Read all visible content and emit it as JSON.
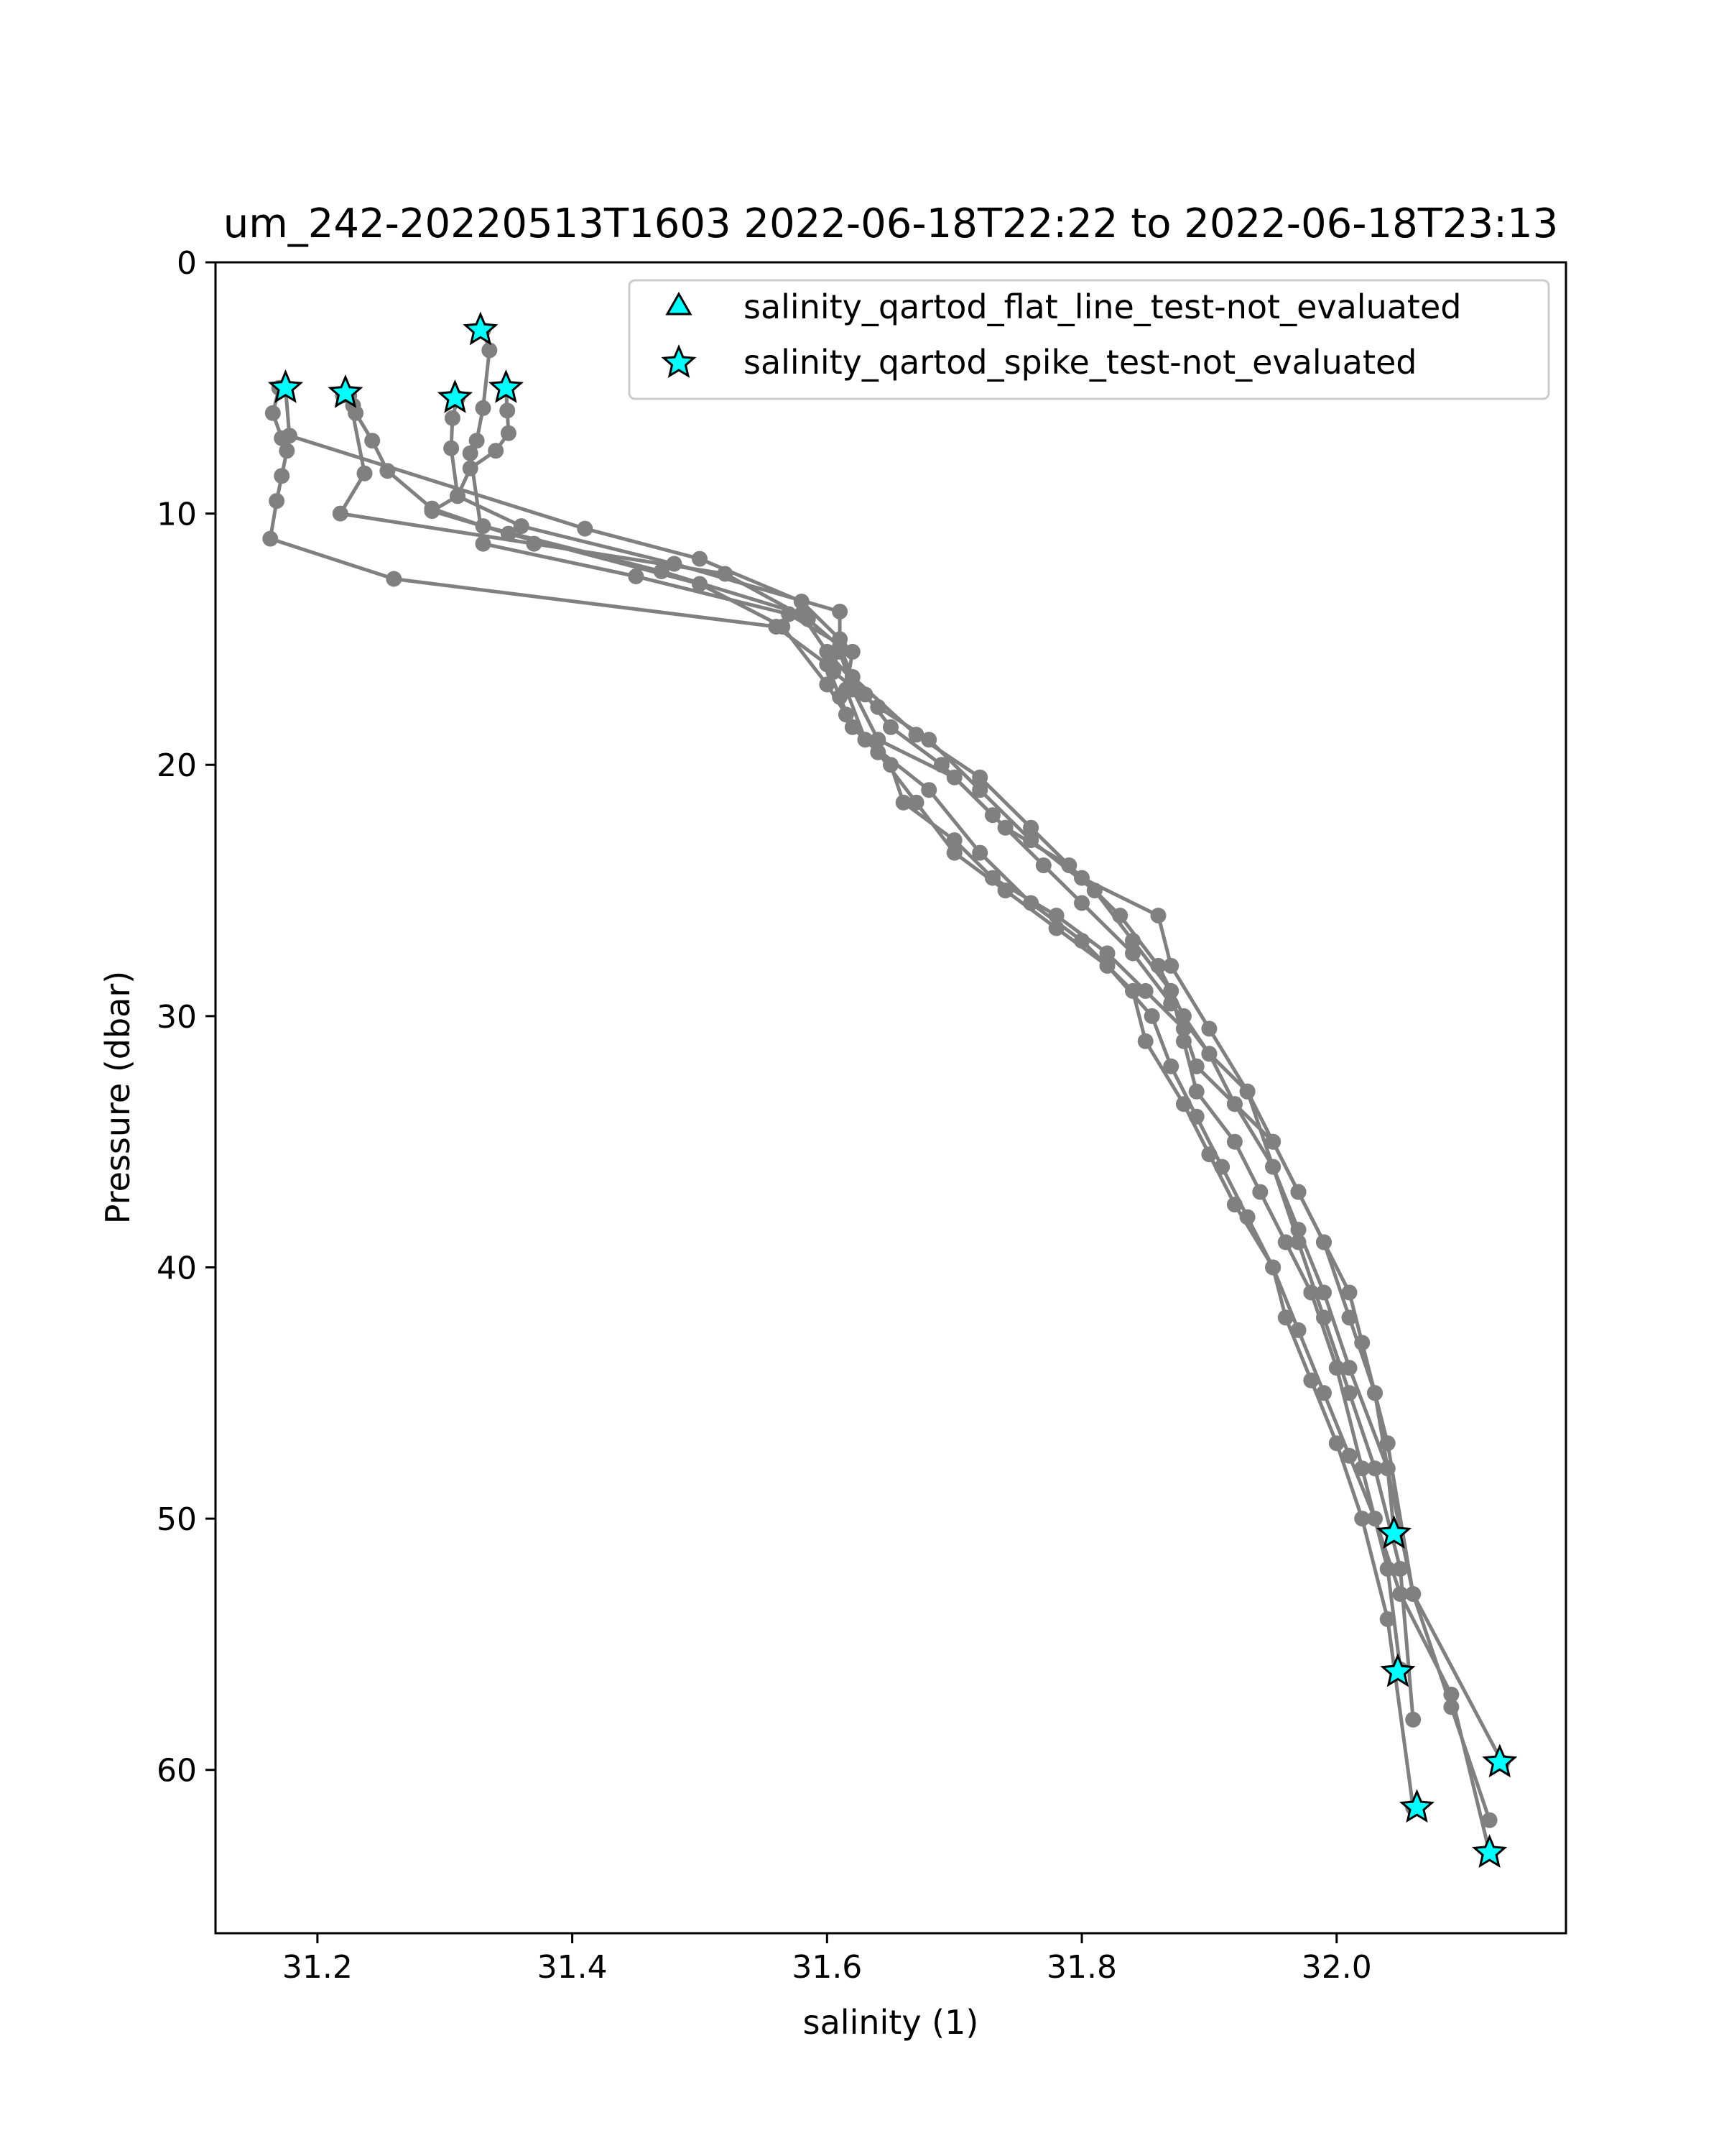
{
  "chart_data": {
    "type": "line",
    "title": "um_242-20220513T1603 2022-06-18T22:22 to 2022-06-18T23:13",
    "xlabel": "salinity (1)",
    "ylabel": "Pressure (dbar)",
    "xlim": [
      31.12,
      32.18
    ],
    "ylim": [
      66.5,
      0
    ],
    "y_inverted": true,
    "grid": false,
    "legend_position": "top-right",
    "x_ticks": [
      31.2,
      31.4,
      31.6,
      31.8,
      32.0
    ],
    "x_tick_labels": [
      "31.2",
      "31.4",
      "31.6",
      "31.8",
      "32.0"
    ],
    "y_ticks": [
      0,
      10,
      20,
      30,
      40,
      50,
      60
    ],
    "y_tick_labels": [
      "0",
      "10",
      "20",
      "30",
      "40",
      "50",
      "60"
    ],
    "colors": {
      "profile_line": "#808080",
      "flag_marker": "#00ffff",
      "flag_edge": "#000000"
    },
    "series": [
      {
        "x": [
          31.17,
          31.165,
          31.172,
          31.176,
          31.172,
          31.168,
          31.163,
          31.26,
          31.56,
          31.6,
          31.61,
          31.62,
          31.65,
          31.66,
          31.7,
          31.73,
          31.78,
          31.82,
          31.85,
          31.88,
          31.89,
          31.92,
          31.95,
          31.97,
          31.99,
          32.01,
          32.03,
          32.04,
          32.045
        ],
        "y": [
          5.0,
          6.0,
          7.0,
          7.5,
          8.5,
          9.5,
          11.0,
          12.6,
          14.5,
          16.0,
          17.3,
          18.5,
          20.0,
          21.5,
          23.0,
          24.5,
          26.0,
          27.5,
          29.0,
          30.5,
          32.0,
          33.5,
          35.0,
          37.0,
          39.0,
          42.0,
          45.0,
          48.0,
          50.5
        ]
      },
      {
        "x": [
          31.175,
          31.178,
          31.41,
          31.5,
          31.58,
          31.61,
          31.605,
          31.64,
          31.68,
          31.72,
          31.76,
          31.81,
          31.84,
          31.87,
          31.88,
          31.89,
          31.92,
          31.94,
          31.96,
          31.98,
          32.0,
          32.02,
          32.04,
          32.05
        ],
        "y": [
          5.0,
          6.9,
          10.6,
          11.8,
          13.5,
          15.0,
          16.3,
          17.7,
          19.0,
          21.0,
          23.0,
          25.0,
          27.0,
          29.0,
          31.0,
          33.0,
          35.0,
          37.0,
          39.0,
          41.0,
          44.0,
          48.0,
          52.0,
          56.0
        ]
      },
      {
        "x": [
          31.22,
          31.228,
          31.23,
          31.243,
          31.255,
          31.29,
          31.33,
          31.47,
          31.58,
          31.6,
          31.63,
          31.65,
          31.69,
          31.73,
          31.77,
          31.8,
          31.84,
          31.87,
          31.9,
          31.92,
          31.95,
          31.97,
          31.99,
          32.01,
          32.03,
          32.05,
          32.06
        ],
        "y": [
          5.3,
          5.7,
          6.0,
          7.1,
          8.3,
          9.8,
          10.5,
          12.3,
          14.0,
          15.5,
          17.2,
          18.5,
          20.0,
          22.0,
          24.0,
          25.5,
          27.5,
          29.5,
          31.5,
          33.5,
          36.0,
          39.0,
          42.0,
          45.0,
          48.0,
          52.0,
          58.0
        ]
      },
      {
        "x": [
          31.225,
          31.237,
          31.218,
          31.37,
          31.52,
          31.585,
          31.61,
          31.62,
          31.67,
          31.72,
          31.76,
          31.8,
          31.86,
          31.87,
          31.9,
          31.93,
          31.95,
          31.97,
          31.99,
          32.01,
          32.04,
          32.06,
          32.13
        ],
        "y": [
          5.3,
          8.4,
          10.0,
          11.2,
          12.4,
          14.2,
          15.3,
          16.5,
          18.8,
          20.5,
          22.5,
          24.5,
          26.0,
          28.0,
          30.5,
          33.0,
          36.0,
          38.5,
          41.0,
          44.0,
          48.0,
          53.0,
          59.7
        ]
      },
      {
        "x": [
          31.31,
          31.306,
          31.305,
          31.31,
          31.29,
          31.35,
          31.5,
          31.565,
          31.6,
          31.615,
          31.64,
          31.67,
          31.7,
          31.74,
          31.78,
          31.82,
          31.855,
          31.87,
          31.89,
          31.91,
          31.93,
          31.95,
          31.96,
          31.98,
          32.0,
          32.02,
          32.04,
          32.06
        ],
        "y": [
          5.4,
          6.2,
          7.4,
          9.3,
          9.9,
          10.8,
          12.8,
          14.5,
          16.8,
          18.0,
          19.5,
          21.5,
          23.5,
          25.0,
          26.5,
          28.0,
          30.0,
          32.0,
          34.0,
          36.0,
          38.0,
          40.0,
          42.0,
          44.5,
          47.0,
          50.0,
          54.0,
          61.5
        ]
      },
      {
        "x": [
          31.33,
          31.335,
          31.33,
          31.325,
          31.32,
          31.33,
          31.45,
          31.57,
          31.62,
          31.615,
          31.63,
          31.68,
          31.72,
          31.76,
          31.8,
          31.84,
          31.85,
          31.88,
          31.9,
          31.92,
          31.95,
          31.97,
          31.99,
          32.01,
          32.03,
          32.05,
          32.09,
          32.12
        ],
        "y": [
          2.7,
          3.5,
          5.8,
          7.1,
          7.6,
          11.2,
          12.5,
          14.0,
          15.5,
          17.0,
          19.0,
          21.0,
          23.5,
          25.5,
          27.0,
          29.0,
          31.0,
          33.5,
          35.5,
          37.5,
          40.0,
          42.5,
          45.0,
          47.5,
          50.0,
          53.0,
          57.0,
          63.3
        ]
      },
      {
        "x": [
          31.348,
          31.349,
          31.35,
          31.34,
          31.32,
          31.31,
          31.36,
          31.48,
          31.61,
          31.61,
          31.62,
          31.64,
          31.7,
          31.74,
          31.79,
          31.83,
          31.86,
          31.88,
          31.9,
          31.93,
          31.95,
          31.97,
          31.99,
          32.01,
          32.02,
          32.03,
          32.04,
          32.06,
          32.09,
          32.12
        ],
        "y": [
          5.0,
          5.9,
          6.8,
          7.5,
          8.2,
          9.3,
          10.5,
          12.0,
          13.9,
          15.5,
          17.0,
          19.0,
          20.5,
          22.5,
          24.0,
          26.0,
          28.0,
          30.0,
          31.5,
          33.0,
          35.0,
          37.0,
          39.0,
          41.0,
          43.0,
          45.0,
          47.0,
          53.0,
          57.5,
          62.0
        ]
      }
    ],
    "flagged_points": [
      {
        "x": 31.328,
        "y": 2.7
      },
      {
        "x": 31.175,
        "y": 5.0
      },
      {
        "x": 31.222,
        "y": 5.2
      },
      {
        "x": 31.308,
        "y": 5.4
      },
      {
        "x": 31.348,
        "y": 5.0
      },
      {
        "x": 32.045,
        "y": 50.6
      },
      {
        "x": 32.048,
        "y": 56.1
      },
      {
        "x": 32.128,
        "y": 59.7
      },
      {
        "x": 32.063,
        "y": 61.5
      },
      {
        "x": 32.12,
        "y": 63.3
      }
    ],
    "legend": [
      {
        "label": "salinity_qartod_flat_line_test-not_evaluated",
        "marker": "triangle"
      },
      {
        "label": "salinity_qartod_spike_test-not_evaluated",
        "marker": "star"
      }
    ]
  }
}
